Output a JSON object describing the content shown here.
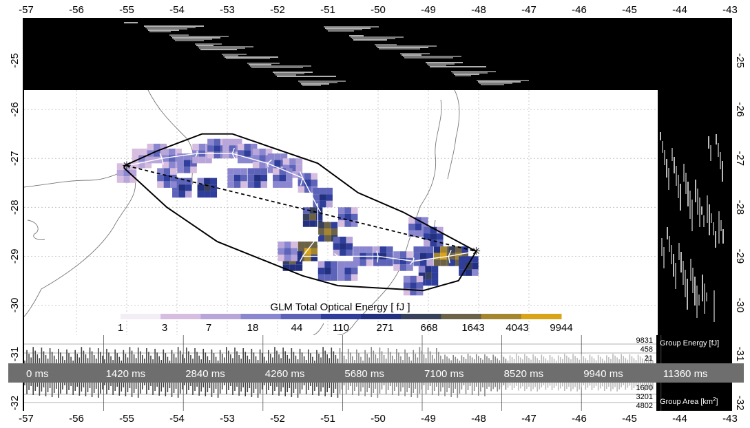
{
  "chart_data": {
    "type": "heatmap",
    "x_axis": {
      "range": [
        -57,
        -43
      ],
      "ticks": [
        "-57",
        "-56",
        "-55",
        "-54",
        "-53",
        "-52",
        "-51",
        "-50",
        "-49",
        "-48",
        "-47",
        "-46",
        "-45",
        "-44",
        "-43"
      ]
    },
    "y_axis": {
      "range": [
        -32.2,
        -24.5
      ],
      "ticks": [
        "-25",
        "-26",
        "-27",
        "-28",
        "-29",
        "-30",
        "-31",
        "-32"
      ]
    },
    "grid": true,
    "colorbar": {
      "title": "GLM Total Optical Energy [ fJ ]",
      "ticks": [
        "1",
        "3",
        "7",
        "18",
        "44",
        "110",
        "271",
        "668",
        "1643",
        "4043",
        "9944"
      ],
      "colors": [
        "#f3eef6",
        "#d7bde0",
        "#b8a6da",
        "#8a86cf",
        "#5c63b9",
        "#2e3e9a",
        "#22307f",
        "#38405c",
        "#6b6247",
        "#a5852d",
        "#d9a418"
      ]
    },
    "flash_start": {
      "lon": -55.0,
      "lat": -27.15
    },
    "flash_end": {
      "lon": -48.05,
      "lat": -28.9
    },
    "convex_hull": [
      [
        -55.05,
        -27.15
      ],
      [
        -54.4,
        -26.85
      ],
      [
        -53.5,
        -26.5
      ],
      [
        -52.9,
        -26.5
      ],
      [
        -51.2,
        -27.1
      ],
      [
        -50.4,
        -27.7
      ],
      [
        -49.5,
        -28.1
      ],
      [
        -48.05,
        -28.9
      ],
      [
        -48.4,
        -29.5
      ],
      [
        -49.1,
        -29.7
      ],
      [
        -50.8,
        -29.6
      ],
      [
        -51.5,
        -29.4
      ],
      [
        -53.2,
        -28.7
      ],
      [
        -54.2,
        -28.0
      ],
      [
        -55.05,
        -27.2
      ]
    ],
    "energy_cells": [
      {
        "lon": -55.0,
        "lat": -27.3,
        "v": 3
      },
      {
        "lon": -54.7,
        "lat": -27.0,
        "v": 3
      },
      {
        "lon": -54.4,
        "lat": -26.9,
        "v": 4
      },
      {
        "lon": -54.1,
        "lat": -27.0,
        "v": 4
      },
      {
        "lon": -53.8,
        "lat": -27.1,
        "v": 5
      },
      {
        "lon": -53.5,
        "lat": -26.9,
        "v": 4
      },
      {
        "lon": -53.2,
        "lat": -26.8,
        "v": 5
      },
      {
        "lon": -52.9,
        "lat": -26.8,
        "v": 4
      },
      {
        "lon": -52.6,
        "lat": -26.9,
        "v": 5
      },
      {
        "lon": -52.3,
        "lat": -27.0,
        "v": 4
      },
      {
        "lon": -52.0,
        "lat": -27.1,
        "v": 5
      },
      {
        "lon": -51.7,
        "lat": -27.2,
        "v": 4
      },
      {
        "lon": -51.4,
        "lat": -27.5,
        "v": 5
      },
      {
        "lon": -51.1,
        "lat": -27.8,
        "v": 6
      },
      {
        "lon": -51.3,
        "lat": -28.2,
        "v": 8
      },
      {
        "lon": -51.0,
        "lat": -28.5,
        "v": 9
      },
      {
        "lon": -51.4,
        "lat": -28.9,
        "v": 10
      },
      {
        "lon": -51.7,
        "lat": -29.1,
        "v": 8
      },
      {
        "lon": -50.7,
        "lat": -28.8,
        "v": 6
      },
      {
        "lon": -50.3,
        "lat": -29.0,
        "v": 5
      },
      {
        "lon": -49.9,
        "lat": -29.0,
        "v": 6
      },
      {
        "lon": -49.5,
        "lat": -29.1,
        "v": 5
      },
      {
        "lon": -49.1,
        "lat": -29.0,
        "v": 6
      },
      {
        "lon": -48.7,
        "lat": -29.0,
        "v": 10
      },
      {
        "lon": -48.4,
        "lat": -29.0,
        "v": 9
      },
      {
        "lon": -48.2,
        "lat": -29.2,
        "v": 7
      },
      {
        "lon": -49.0,
        "lat": -29.4,
        "v": 7
      },
      {
        "lon": -49.3,
        "lat": -29.6,
        "v": 5
      },
      {
        "lon": -50.6,
        "lat": -29.3,
        "v": 5
      },
      {
        "lon": -51.0,
        "lat": -29.3,
        "v": 6
      },
      {
        "lon": -51.8,
        "lat": -28.9,
        "v": 4
      },
      {
        "lon": -53.9,
        "lat": -27.6,
        "v": 6
      },
      {
        "lon": -53.4,
        "lat": -27.6,
        "v": 7
      },
      {
        "lon": -54.2,
        "lat": -27.4,
        "v": 5
      },
      {
        "lon": -52.8,
        "lat": -27.4,
        "v": 5
      },
      {
        "lon": -49.2,
        "lat": -28.4,
        "v": 5
      },
      {
        "lon": -48.9,
        "lat": -28.6,
        "v": 6
      },
      {
        "lon": -52.4,
        "lat": -27.4,
        "v": 6
      },
      {
        "lon": -51.9,
        "lat": -27.4,
        "v": 5
      },
      {
        "lon": -50.6,
        "lat": -28.2,
        "v": 5
      }
    ],
    "top_panel_label": "",
    "right_panel_label": "",
    "time_axis": {
      "labels": [
        "0 ms",
        "1420 ms",
        "2840 ms",
        "4260 ms",
        "5680 ms",
        "7100 ms",
        "8520 ms",
        "9940 ms",
        "11360 ms"
      ]
    },
    "group_energy": {
      "title": "Group Energy [fJ]",
      "ticks": [
        "9831",
        "458",
        "21"
      ]
    },
    "group_area": {
      "title": "Group Area [km²]",
      "title_main": "Group Area [km",
      "title_sup": "2",
      "title_end": "]",
      "ticks": [
        "1600",
        "3201",
        "4802"
      ]
    }
  }
}
